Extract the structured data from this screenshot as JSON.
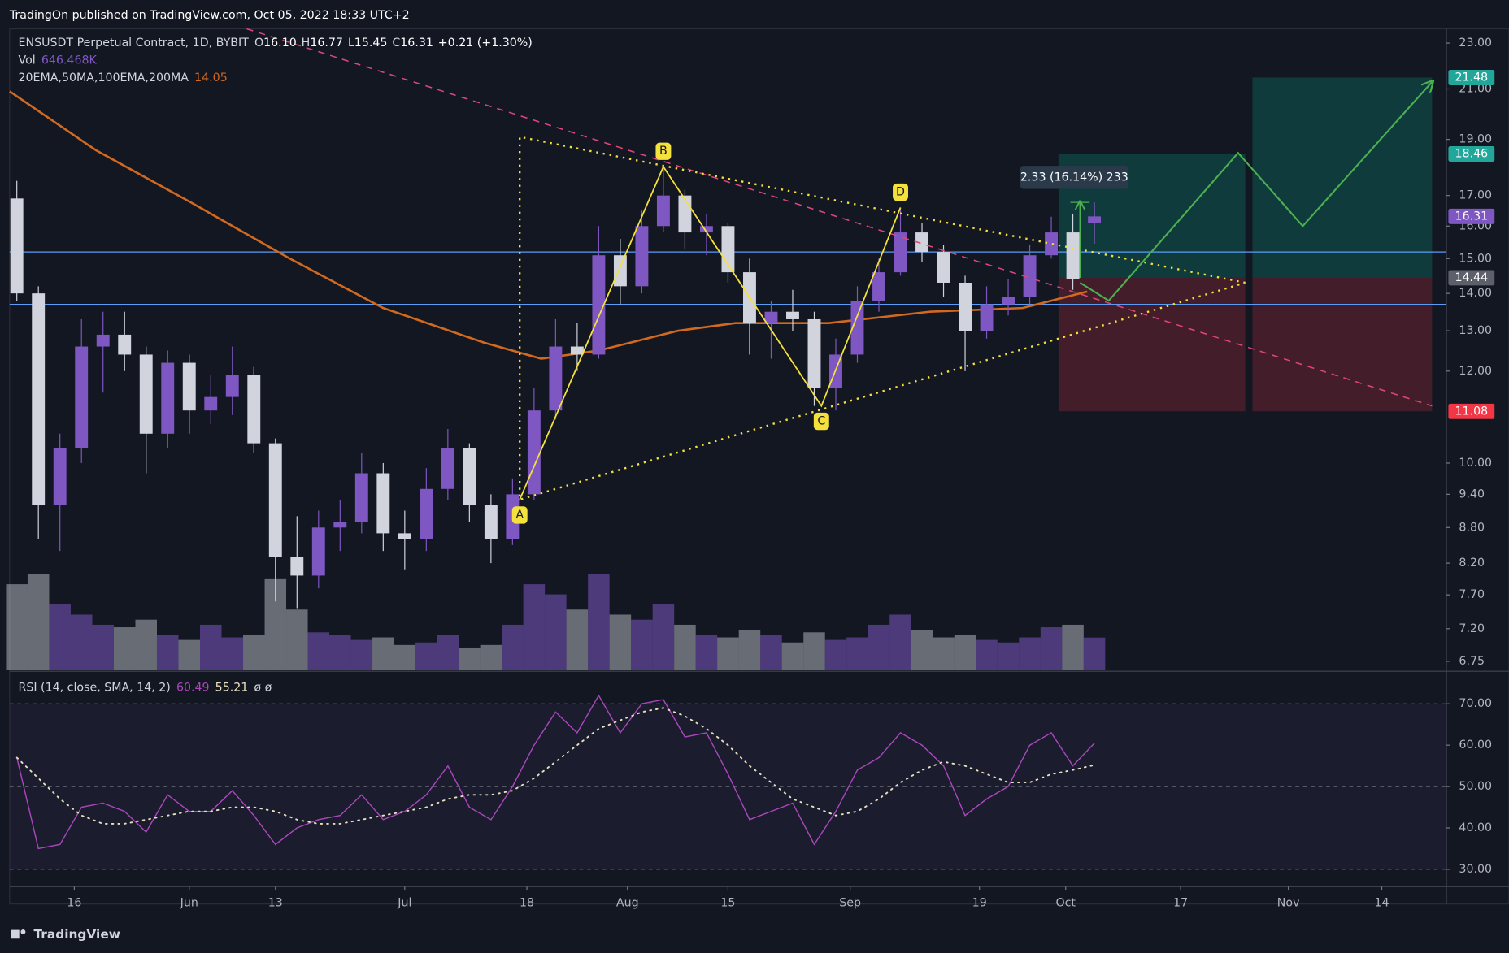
{
  "header": {
    "publisher": "TradingOn published on TradingView.com, Oct 05, 2022 18:33 UTC+2"
  },
  "chart_data": [
    {
      "type": "candlestick",
      "title": "ENSUSDT Perpetual Contract, 1D, BYBIT",
      "ohlc_legend": [
        {
          "label": "O",
          "value": "16.10"
        },
        {
          "label": "H",
          "value": "16.77"
        },
        {
          "label": "L",
          "value": "15.45"
        },
        {
          "label": "C",
          "value": "16.31"
        }
      ],
      "change": "+0.21 (+1.30%)",
      "volume_legend": {
        "label": "Vol",
        "value": "646.468K"
      },
      "ma_legend": {
        "label": "20EMA,50MA,100EMA,200MA",
        "value": "14.05"
      },
      "x": [
        "2022-05-08",
        "2022-05-11",
        "2022-05-14",
        "2022-05-17",
        "2022-05-20",
        "2022-05-23",
        "2022-05-26",
        "2022-05-29",
        "2022-06-01",
        "2022-06-04",
        "2022-06-07",
        "2022-06-10",
        "2022-06-13",
        "2022-06-16",
        "2022-06-19",
        "2022-06-22",
        "2022-06-25",
        "2022-06-28",
        "2022-07-01",
        "2022-07-04",
        "2022-07-07",
        "2022-07-10",
        "2022-07-13",
        "2022-07-16",
        "2022-07-19",
        "2022-07-22",
        "2022-07-25",
        "2022-07-28",
        "2022-07-31",
        "2022-08-03",
        "2022-08-06",
        "2022-08-09",
        "2022-08-12",
        "2022-08-15",
        "2022-08-18",
        "2022-08-21",
        "2022-08-24",
        "2022-08-27",
        "2022-08-30",
        "2022-09-02",
        "2022-09-05",
        "2022-09-08",
        "2022-09-11",
        "2022-09-14",
        "2022-09-17",
        "2022-09-20",
        "2022-09-23",
        "2022-09-26",
        "2022-09-29",
        "2022-10-02",
        "2022-10-05"
      ],
      "open": [
        16.9,
        14.0,
        9.2,
        10.3,
        12.6,
        12.9,
        12.4,
        10.6,
        12.2,
        11.1,
        11.4,
        11.9,
        10.4,
        8.3,
        8.0,
        8.8,
        8.9,
        9.8,
        8.7,
        8.6,
        9.5,
        10.3,
        9.2,
        8.6,
        9.4,
        11.1,
        12.6,
        12.4,
        15.1,
        14.2,
        16.0,
        17.0,
        15.8,
        16.0,
        14.6,
        13.2,
        13.5,
        13.3,
        11.6,
        12.4,
        13.8,
        14.6,
        15.8,
        15.2,
        14.3,
        13.0,
        13.7,
        13.9,
        15.1,
        15.8,
        16.1
      ],
      "high": [
        17.5,
        14.2,
        10.6,
        13.3,
        13.5,
        13.5,
        12.6,
        12.5,
        12.4,
        11.9,
        12.6,
        12.1,
        10.5,
        9.0,
        9.1,
        9.3,
        10.2,
        10.0,
        9.1,
        9.9,
        10.7,
        10.4,
        9.4,
        9.7,
        11.6,
        13.3,
        13.2,
        16.0,
        15.6,
        16.5,
        18.0,
        17.2,
        16.4,
        16.1,
        15.0,
        13.8,
        14.1,
        13.5,
        12.8,
        14.2,
        15.0,
        16.6,
        16.1,
        15.4,
        14.5,
        14.2,
        14.4,
        15.4,
        16.3,
        16.4,
        16.77
      ],
      "low": [
        13.8,
        8.6,
        8.4,
        10.0,
        11.5,
        12.0,
        9.8,
        10.3,
        10.6,
        10.8,
        11.0,
        10.2,
        7.6,
        7.5,
        7.8,
        8.4,
        8.7,
        8.4,
        8.1,
        8.4,
        9.3,
        8.9,
        8.2,
        8.5,
        9.3,
        10.9,
        12.0,
        12.3,
        13.7,
        14.0,
        15.8,
        15.3,
        15.1,
        14.3,
        12.4,
        12.3,
        13.0,
        11.2,
        11.1,
        12.2,
        13.5,
        14.5,
        14.9,
        13.9,
        12.0,
        12.8,
        13.4,
        13.7,
        15.0,
        14.1,
        15.45
      ],
      "close": [
        14.0,
        9.2,
        10.3,
        12.6,
        12.9,
        12.4,
        10.6,
        12.2,
        11.1,
        11.4,
        11.9,
        10.4,
        8.3,
        8.0,
        8.8,
        8.9,
        9.8,
        8.7,
        8.6,
        9.5,
        10.3,
        9.2,
        8.6,
        9.4,
        11.1,
        12.6,
        12.4,
        15.1,
        14.2,
        16.0,
        17.0,
        15.8,
        16.0,
        14.6,
        13.2,
        13.5,
        13.3,
        11.6,
        12.4,
        13.8,
        14.6,
        15.8,
        15.2,
        14.3,
        13.0,
        13.7,
        13.9,
        15.1,
        15.8,
        14.4,
        16.31
      ],
      "volume": [
        1700,
        1900,
        1300,
        1100,
        900,
        850,
        1000,
        700,
        600,
        900,
        650,
        700,
        1800,
        1200,
        750,
        700,
        600,
        650,
        500,
        550,
        700,
        450,
        500,
        900,
        1700,
        1500,
        1200,
        1900,
        1100,
        1000,
        1300,
        900,
        700,
        650,
        800,
        700,
        550,
        750,
        600,
        650,
        900,
        1100,
        800,
        650,
        700,
        600,
        550,
        650,
        850,
        900,
        646.468
      ],
      "up_color": "#7e57c2",
      "down_color": "#d1d4dc",
      "xlim": [
        "2022-05-07",
        "2022-11-23"
      ],
      "xticks": [
        {
          "value": "2022-05-16",
          "label": "16"
        },
        {
          "value": "2022-06-01",
          "label": "Jun"
        },
        {
          "value": "2022-06-13",
          "label": "13"
        },
        {
          "value": "2022-07-01",
          "label": "Jul"
        },
        {
          "value": "2022-07-18",
          "label": "18"
        },
        {
          "value": "2022-08-01",
          "label": "Aug"
        },
        {
          "value": "2022-08-15",
          "label": "15"
        },
        {
          "value": "2022-09-01",
          "label": "Sep"
        },
        {
          "value": "2022-09-19",
          "label": "19"
        },
        {
          "value": "2022-10-01",
          "label": "Oct"
        },
        {
          "value": "2022-10-17",
          "label": "17"
        },
        {
          "value": "2022-11-01",
          "label": "Nov"
        },
        {
          "value": "2022-11-14",
          "label": "14"
        }
      ],
      "ylim": [
        6.63,
        23.66
      ],
      "log_scale": true,
      "yticks": [
        {
          "value": 23,
          "label": "23.00"
        },
        {
          "value": 21,
          "label": "21.00"
        },
        {
          "value": 19,
          "label": "19.00"
        },
        {
          "value": 17,
          "label": "17.00"
        },
        {
          "value": 16,
          "label": "16.00"
        },
        {
          "value": 15,
          "label": "15.00"
        },
        {
          "value": 14,
          "label": "14.00"
        },
        {
          "value": 13,
          "label": "13.00"
        },
        {
          "value": 12,
          "label": "12.00"
        },
        {
          "value": 10,
          "label": "10.00"
        },
        {
          "value": 9.4,
          "label": "9.40"
        },
        {
          "value": 8.8,
          "label": "8.80"
        },
        {
          "value": 8.2,
          "label": "8.20"
        },
        {
          "value": 7.7,
          "label": "7.70"
        },
        {
          "value": 7.2,
          "label": "7.20"
        },
        {
          "value": 6.75,
          "label": "6.75"
        }
      ],
      "ma": {
        "color": "#d2691e",
        "x": [
          "2022-05-07",
          "2022-05-19",
          "2022-06-01",
          "2022-06-15",
          "2022-06-28",
          "2022-07-12",
          "2022-07-20",
          "2022-07-28",
          "2022-08-08",
          "2022-08-16",
          "2022-08-29",
          "2022-09-12",
          "2022-09-25",
          "2022-10-04"
        ],
        "values": [
          20.9,
          18.6,
          16.8,
          15.0,
          13.6,
          12.7,
          12.3,
          12.5,
          13.0,
          13.2,
          13.2,
          13.5,
          13.6,
          14.05
        ]
      },
      "hlines": [
        {
          "value": 15.2,
          "color": "#5b9cf6"
        },
        {
          "value": 13.7,
          "color": "#5b9cf6"
        }
      ],
      "trendline": {
        "color": "#e0457b",
        "x": [
          "2022-06-09",
          "2022-11-21"
        ],
        "values": [
          23.66,
          11.2
        ]
      },
      "triangle": {
        "color": "#f5e13b",
        "x": [
          "2022-10-26",
          "2022-07-17",
          "2022-07-17",
          "2022-10-26"
        ],
        "values": [
          14.3,
          19.1,
          9.3,
          14.3
        ]
      },
      "pattern": {
        "color": "#f5e13b",
        "labels": [
          "A",
          "B",
          "C",
          "D"
        ],
        "x": [
          "2022-07-17",
          "2022-08-06",
          "2022-08-28",
          "2022-09-08"
        ],
        "values": [
          9.3,
          18.0,
          11.2,
          16.6
        ]
      },
      "projection": {
        "color": "#4caf50",
        "x": [
          "2022-10-03",
          "2022-10-07",
          "2022-10-25",
          "2022-11-03",
          "2022-11-21"
        ],
        "values": [
          14.3,
          13.8,
          18.5,
          16.0,
          21.3
        ]
      },
      "measure": {
        "label": "2.33 (16.14%) 233",
        "x": "2022-10-03",
        "values": [
          14.44,
          16.77
        ]
      },
      "positions": [
        {
          "x": [
            "2022-09-30",
            "2022-10-26"
          ],
          "entry": 14.44,
          "target": 18.46,
          "stop": 11.08
        },
        {
          "x": [
            "2022-10-27",
            "2022-11-21"
          ],
          "entry": 14.44,
          "target": 21.48,
          "stop": 11.08
        }
      ],
      "price_labels": [
        {
          "value": 21.48,
          "label": "21.48",
          "color": "#22a69a"
        },
        {
          "value": 18.46,
          "label": "18.46",
          "color": "#22a69a"
        },
        {
          "value": 16.31,
          "label": "16.31",
          "color": "#7e57c2"
        },
        {
          "value": 14.44,
          "label": "14.44",
          "color": "#5d606b"
        },
        {
          "value": 11.08,
          "label": "11.08",
          "color": "#f23645"
        }
      ]
    },
    {
      "type": "line",
      "title": "RSI (14, close, SMA, 14, 2)",
      "extra": "ø ø",
      "x": [
        "2022-05-08",
        "2022-05-11",
        "2022-05-14",
        "2022-05-17",
        "2022-05-20",
        "2022-05-23",
        "2022-05-26",
        "2022-05-29",
        "2022-06-01",
        "2022-06-04",
        "2022-06-07",
        "2022-06-10",
        "2022-06-13",
        "2022-06-16",
        "2022-06-19",
        "2022-06-22",
        "2022-06-25",
        "2022-06-28",
        "2022-07-01",
        "2022-07-04",
        "2022-07-07",
        "2022-07-10",
        "2022-07-13",
        "2022-07-16",
        "2022-07-19",
        "2022-07-22",
        "2022-07-25",
        "2022-07-28",
        "2022-07-31",
        "2022-08-03",
        "2022-08-06",
        "2022-08-09",
        "2022-08-12",
        "2022-08-15",
        "2022-08-18",
        "2022-08-21",
        "2022-08-24",
        "2022-08-27",
        "2022-08-30",
        "2022-09-02",
        "2022-09-05",
        "2022-09-08",
        "2022-09-11",
        "2022-09-14",
        "2022-09-17",
        "2022-09-20",
        "2022-09-23",
        "2022-09-26",
        "2022-09-29",
        "2022-10-02",
        "2022-10-05"
      ],
      "series": [
        {
          "color": "#ab47bc",
          "values": [
            57,
            35,
            36,
            45,
            46,
            44,
            39,
            48,
            44,
            44,
            49,
            43,
            36,
            40,
            42,
            43,
            48,
            42,
            44,
            48,
            55,
            45,
            42,
            50,
            60,
            68,
            63,
            72,
            63,
            70,
            71,
            62,
            63,
            53,
            42,
            44,
            46,
            36,
            44,
            54,
            57,
            63,
            60,
            55,
            43,
            47,
            50,
            60,
            63,
            55,
            60.49
          ]
        },
        {
          "color": "#e8e0c0",
          "dotted": true,
          "values": [
            57,
            52,
            47,
            43,
            41,
            41,
            42,
            43,
            44,
            44,
            45,
            45,
            44,
            42,
            41,
            41,
            42,
            43,
            44,
            45,
            47,
            48,
            48,
            49,
            52,
            56,
            60,
            64,
            66,
            68,
            69,
            67,
            64,
            60,
            55,
            51,
            47,
            45,
            43,
            44,
            47,
            51,
            54,
            56,
            55,
            53,
            51,
            51,
            53,
            54,
            55.21
          ]
        }
      ],
      "ylim": [
        25.8,
        77.4
      ],
      "yticks": [
        {
          "value": 70,
          "label": "70.00"
        },
        {
          "value": 60,
          "label": "60.00"
        },
        {
          "value": 50,
          "label": "50.00"
        },
        {
          "value": 40,
          "label": "40.00"
        },
        {
          "value": 30,
          "label": "30.00"
        }
      ],
      "levels": [
        70,
        50,
        30
      ]
    }
  ],
  "footer": {
    "brand": "TradingView"
  }
}
